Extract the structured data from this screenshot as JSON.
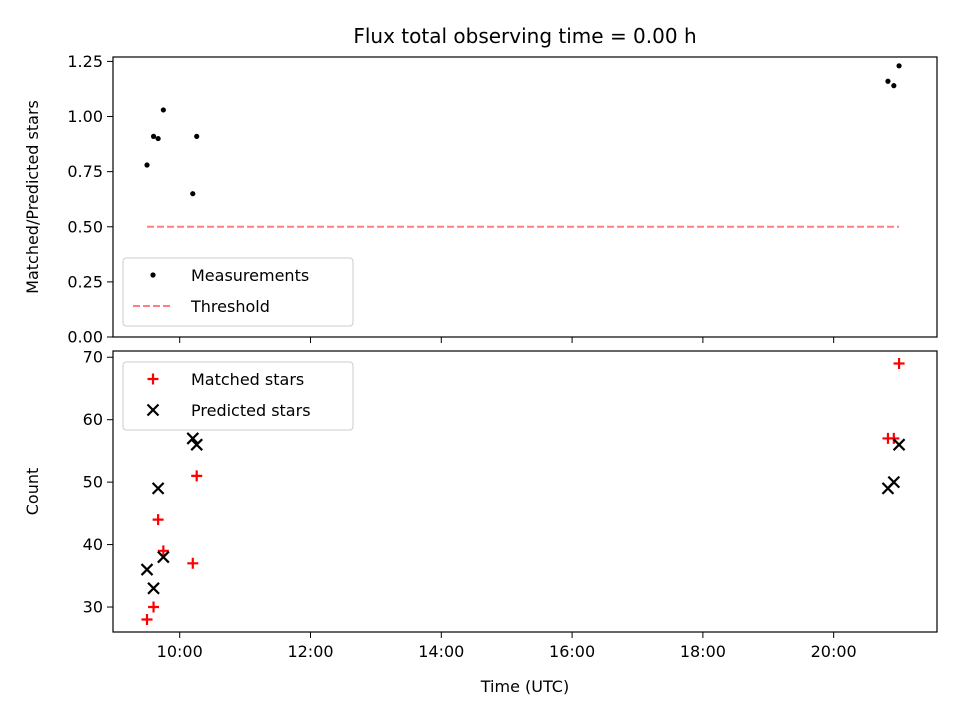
{
  "chart_data": [
    {
      "type": "scatter",
      "title": "Flux total observing time = 0.00 h",
      "xlabel": "",
      "ylabel": "Matched/Predicted stars",
      "xlim": [
        8.98,
        21.58
      ],
      "ylim": [
        0,
        1.27
      ],
      "yticks": [
        0,
        0.25,
        0.5,
        0.75,
        1.0,
        1.25
      ],
      "ytick_labels": [
        "0.00",
        "0.25",
        "0.50",
        "0.75",
        "1.00",
        "1.25"
      ],
      "xticks": [
        10,
        12,
        14,
        16,
        18,
        20
      ],
      "xtick_labels": [
        "",
        "",
        "",
        "",
        "",
        ""
      ],
      "grid": false,
      "legend_position": "bottom-left",
      "series": [
        {
          "name": "Measurements",
          "style": "dot",
          "color": "#000000",
          "x": [
            9.5,
            9.6,
            9.67,
            9.75,
            10.2,
            10.26,
            20.83,
            20.92,
            21.0
          ],
          "y": [
            0.78,
            0.91,
            0.9,
            1.03,
            0.65,
            0.91,
            1.16,
            1.14,
            1.23
          ]
        },
        {
          "name": "Threshold",
          "style": "dashed-line",
          "color": "#ff7f7f",
          "x": [
            9.5,
            21.0
          ],
          "y": [
            0.5,
            0.5
          ]
        }
      ]
    },
    {
      "type": "scatter",
      "title": "",
      "xlabel": "Time (UTC)",
      "ylabel": "Count",
      "xlim": [
        8.98,
        21.58
      ],
      "ylim": [
        26,
        71
      ],
      "yticks": [
        30,
        40,
        50,
        60,
        70
      ],
      "ytick_labels": [
        "30",
        "40",
        "50",
        "60",
        "70"
      ],
      "xticks": [
        10,
        12,
        14,
        16,
        18,
        20
      ],
      "xtick_labels": [
        "10:00",
        "12:00",
        "14:00",
        "16:00",
        "18:00",
        "20:00"
      ],
      "grid": false,
      "legend_position": "top-left",
      "series": [
        {
          "name": "Matched stars",
          "style": "plus",
          "color": "#ff0000",
          "x": [
            9.5,
            9.6,
            9.67,
            9.75,
            10.2,
            10.26,
            20.83,
            20.92,
            21.0
          ],
          "y": [
            28,
            30,
            44,
            39,
            37,
            51,
            57,
            57,
            69
          ]
        },
        {
          "name": "Predicted stars",
          "style": "x",
          "color": "#000000",
          "x": [
            9.5,
            9.6,
            9.67,
            9.75,
            10.2,
            10.26,
            20.83,
            20.92,
            21.0
          ],
          "y": [
            36,
            33,
            49,
            38,
            57,
            56,
            49,
            50,
            56
          ]
        }
      ]
    }
  ]
}
